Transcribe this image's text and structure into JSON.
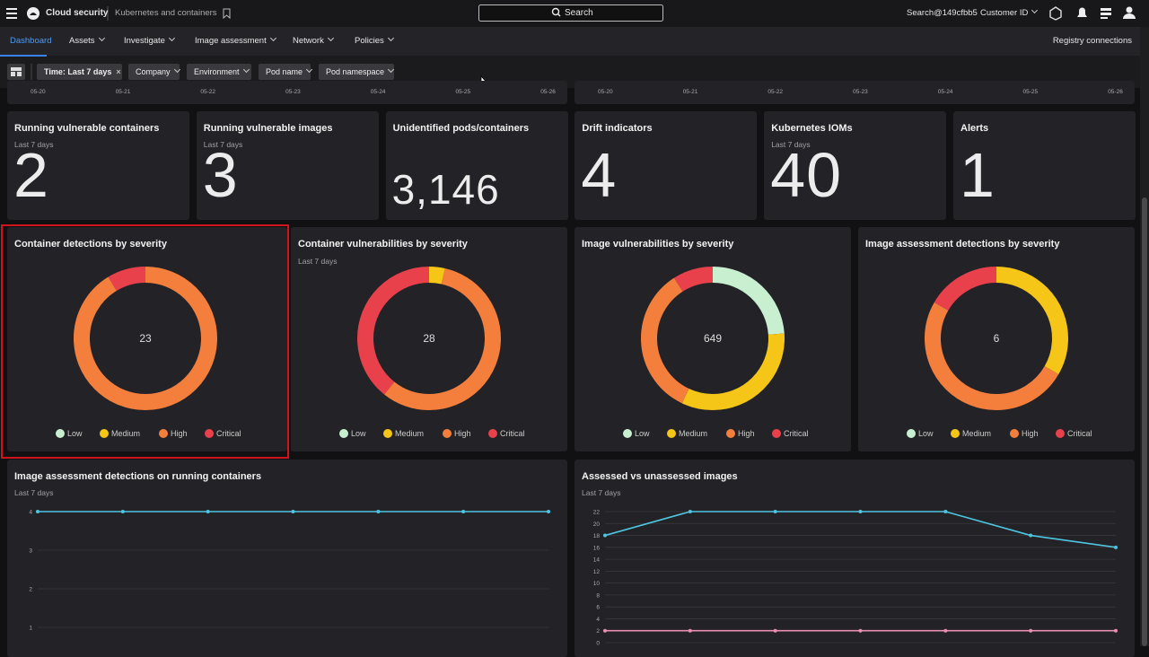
{
  "top_bar": {
    "app": "Cloud security",
    "section": "Kubernetes and containers",
    "search": "Search",
    "user": "Search@149cfbb5",
    "customer": "Customer ID"
  },
  "nav": {
    "tabs": [
      "Dashboard",
      "Assets",
      "Investigate",
      "Image assessment",
      "Network",
      "Policies"
    ],
    "right": "Registry connections"
  },
  "filters": [
    "Time: Last 7 days",
    "Company",
    "Environment",
    "Pod name",
    "Pod namespace"
  ],
  "top_charts": [
    {
      "categories": [
        "05-20",
        "05-21",
        "05-22",
        "05-23",
        "05-24",
        "05-25",
        "05-26"
      ]
    },
    {
      "categories": [
        "05-20",
        "05-21",
        "05-22",
        "05-23",
        "05-24",
        "05-25",
        "05-26"
      ]
    }
  ],
  "stat_cards": [
    {
      "title": "Running vulnerable containers",
      "subtitle": "Last 7 days",
      "value": 2
    },
    {
      "title": "Running vulnerable images",
      "subtitle": "Last 7 days",
      "value": 3
    },
    {
      "title": "Unidentified pods/containers",
      "value": 3146,
      "value_label": "3,146"
    },
    {
      "title": "Drift indicators",
      "value": 4
    },
    {
      "title": "Kubernetes IOMs",
      "subtitle": "Last 7 days",
      "value": 40
    },
    {
      "title": "Alerts",
      "value": 1
    }
  ],
  "donuts": {
    "legend": [
      "Low",
      "Medium",
      "High",
      "Critical"
    ],
    "colors": [
      "#c8efd0",
      "#f5c518",
      "#f47f3c",
      "#e8414b"
    ],
    "cards": [
      {
        "title": "Container detections by severity",
        "total": 23,
        "values": [
          0,
          0,
          21,
          2
        ]
      },
      {
        "title": "Container vulnerabilities by severity",
        "subtitle": "Last 7 days",
        "total": 28,
        "values": [
          0,
          1,
          16,
          11
        ]
      },
      {
        "title": "Image vulnerabilities by severity",
        "total": 649,
        "values": [
          155,
          215,
          220,
          59
        ]
      },
      {
        "title": "Image assessment detections by severity",
        "total": 6,
        "values": [
          0,
          2,
          3,
          1
        ]
      }
    ]
  },
  "line_charts": [
    {
      "type": "line",
      "title": "Image assessment detections on running containers",
      "subtitle": "Last 7 days",
      "ylim": [
        0,
        4
      ],
      "yticks": [
        1,
        2,
        3,
        4
      ],
      "grid": true,
      "series": [
        {
          "color": "#4ec5e0",
          "values": [
            4,
            4,
            4,
            4,
            4,
            4,
            4
          ]
        }
      ]
    },
    {
      "type": "line",
      "title": "Assessed vs unassessed images",
      "subtitle": "Last 7 days",
      "ylim": [
        0,
        22
      ],
      "yticks": [
        0,
        2,
        4,
        6,
        8,
        10,
        12,
        14,
        16,
        18,
        20,
        22
      ],
      "grid": true,
      "series": [
        {
          "color": "#4ec5e0",
          "values": [
            18,
            22,
            22,
            22,
            22,
            18,
            16
          ]
        },
        {
          "color": "#e98fb0",
          "values": [
            2,
            2,
            2,
            2,
            2,
            2,
            2
          ]
        }
      ]
    }
  ]
}
